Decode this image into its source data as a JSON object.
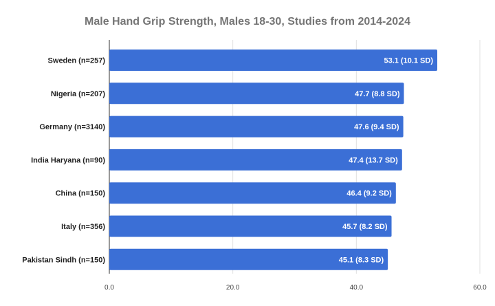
{
  "chart_data": {
    "type": "bar",
    "orientation": "horizontal",
    "title": "Male Hand Grip Strength, Males 18-30, Studies from 2014-2024",
    "categories": [
      "Sweden (n=257)",
      "Nigeria (n=207)",
      "Germany (n=3140)",
      "India Haryana (n=90)",
      "China (n=150)",
      "Italy (n=356)",
      "Pakistan Sindh (n=150)"
    ],
    "values": [
      53.1,
      47.7,
      47.6,
      47.4,
      46.4,
      45.7,
      45.1
    ],
    "data_labels": [
      "53.1 (10.1 SD)",
      "47.7 (8.8 SD)",
      "47.6 (9.4 SD)",
      "47.4 (13.7 SD)",
      "46.4 (9.2 SD)",
      "45.7 (8.2 SD)",
      "45.1 (8.3 SD)"
    ],
    "xlim": [
      0,
      60
    ],
    "ticks": [
      "0.0",
      "20.0",
      "40.0",
      "60.0"
    ],
    "tick_values": [
      0,
      20,
      40,
      60
    ],
    "grid": true,
    "bar_color": "#3b6fd6",
    "title_color": "#757575",
    "legend": "none"
  }
}
